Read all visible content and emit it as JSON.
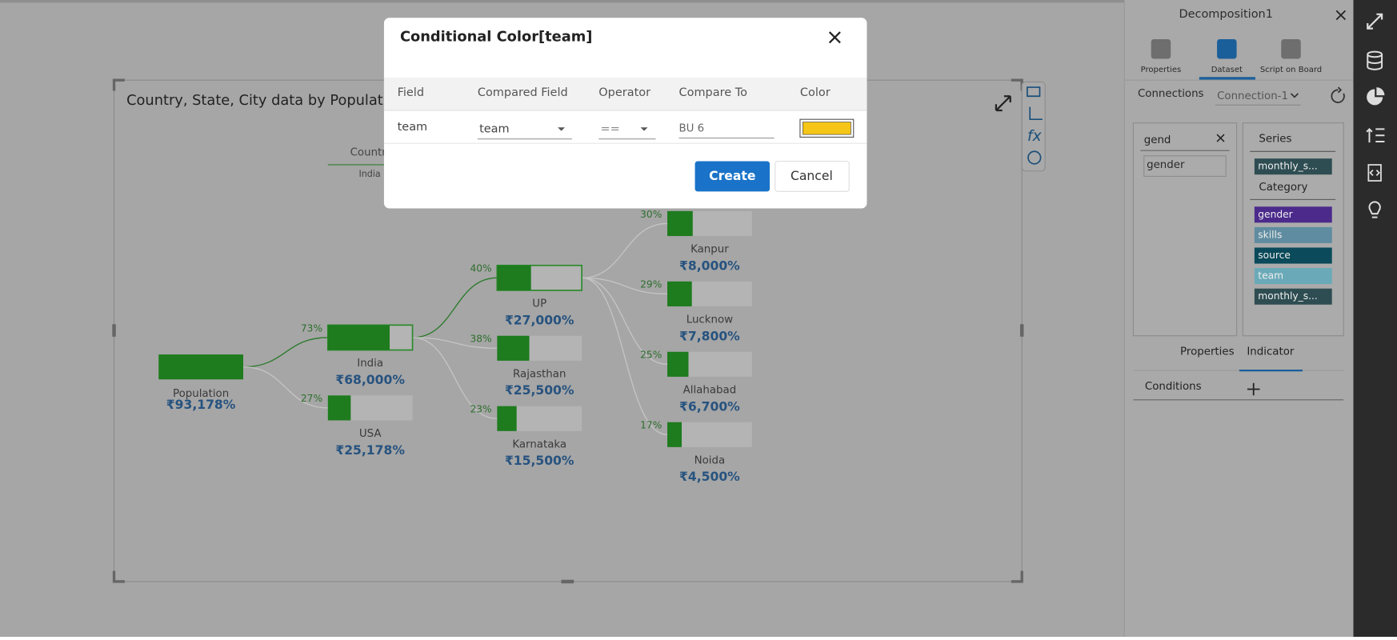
{
  "chart": {
    "title": "Country, State, City data by Population",
    "level_header": "Country",
    "level_value": "India",
    "nodes": [
      {
        "label": "Population",
        "value": "₹93,178%"
      },
      {
        "label": "India",
        "value": "₹68,000%",
        "share": "73%"
      },
      {
        "label": "USA",
        "value": "₹25,178%",
        "share": "27%"
      },
      {
        "label": "UP",
        "value": "₹27,000%",
        "share": "40%"
      },
      {
        "label": "Rajasthan",
        "value": "₹25,500%",
        "share": "38%"
      },
      {
        "label": "Karnataka",
        "value": "₹15,500%",
        "share": "23%"
      },
      {
        "label": "Kanpur",
        "value": "₹8,000%",
        "share": "30%"
      },
      {
        "label": "Lucknow",
        "value": "₹7,800%",
        "share": "29%"
      },
      {
        "label": "Allahabad",
        "value": "₹6,700%",
        "share": "25%"
      },
      {
        "label": "Noida",
        "value": "₹4,500%",
        "share": "17%"
      }
    ]
  },
  "dialog": {
    "title": "Conditional Color[team]",
    "columns": [
      "Field",
      "Compared Field",
      "Operator",
      "Compare To",
      "Color"
    ],
    "row": {
      "field": "team",
      "compared_field": "team",
      "operator": "==",
      "compare_to": "BU 6",
      "color": "#f5c518"
    },
    "buttons": [
      "Create",
      "Cancel"
    ]
  },
  "panel": {
    "title": "Decomposition1",
    "tabs": [
      "Properties",
      "Dataset",
      "Script on Board"
    ],
    "connections_label": "Connections",
    "connection": "Connection-1",
    "search": "gend",
    "results": [
      "gender"
    ],
    "series_heading": "Series",
    "series": [
      "monthly_s..."
    ],
    "category_heading": "Category",
    "categories": [
      "gender",
      "skills",
      "source",
      "team",
      "monthly_s..."
    ],
    "bottom_tabs": [
      "Properties",
      "Indicator"
    ],
    "conditions_label": "Conditions"
  }
}
